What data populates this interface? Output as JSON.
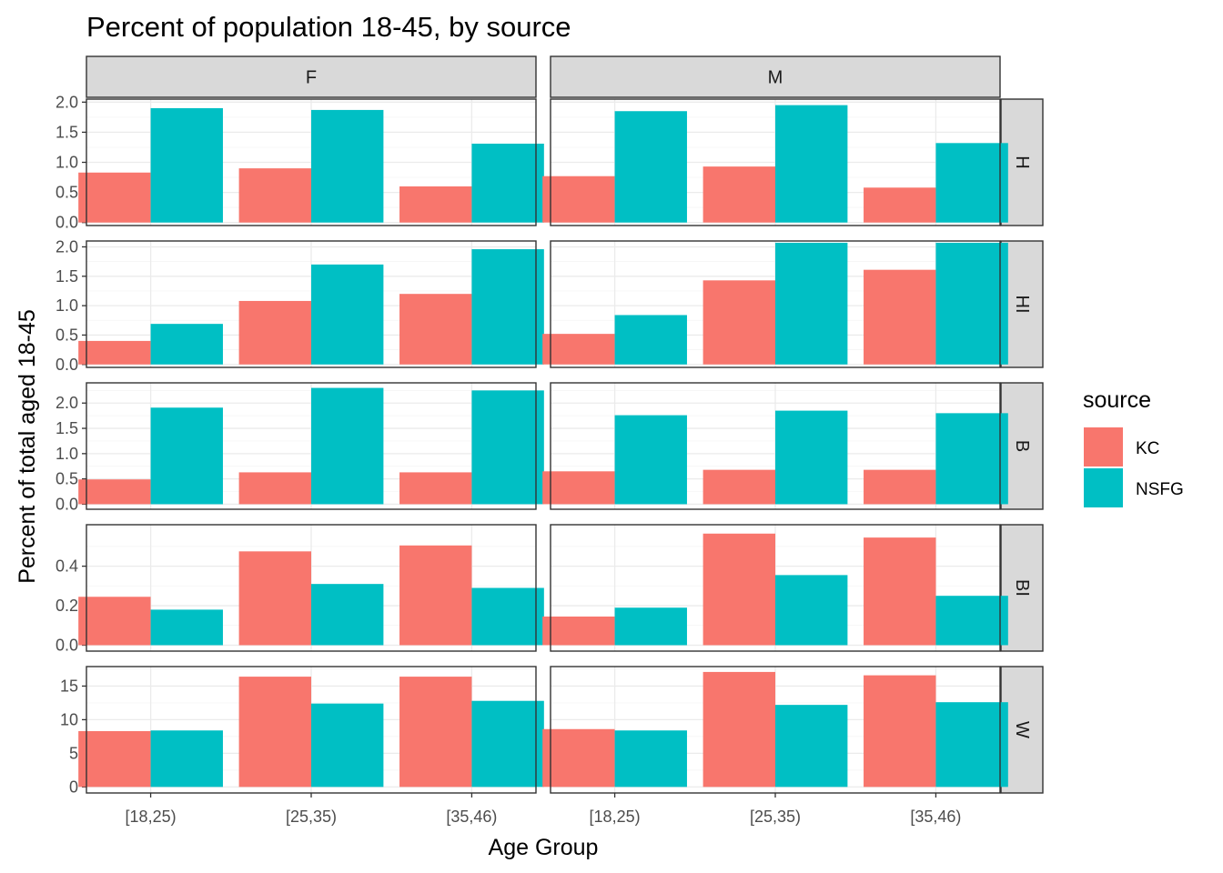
{
  "chart_data": {
    "type": "bar",
    "title": "Percent of population 18-45, by source",
    "xlabel": "Age Group",
    "ylabel": "Percent of total aged 18-45",
    "categories": [
      "[18,25)",
      "[25,35)",
      "[35,46)"
    ],
    "columns": [
      "F",
      "M"
    ],
    "legend": {
      "title": "source",
      "position": "right",
      "entries": [
        {
          "name": "KC",
          "color": "#F8766D"
        },
        {
          "name": "NSFG",
          "color": "#00BFC4"
        }
      ]
    },
    "grid": true,
    "rows": [
      {
        "label": "H",
        "ylim": [
          -0.05,
          2.05
        ],
        "ticks": [
          "0.0",
          "0.5",
          "1.0",
          "1.5",
          "2.0"
        ],
        "tick_values": [
          0,
          0.5,
          1.0,
          1.5,
          2.0
        ],
        "minor_step": 0.25,
        "panels": {
          "F": {
            "KC": [
              0.83,
              0.9,
              0.6
            ],
            "NSFG": [
              1.9,
              1.87,
              1.31
            ]
          },
          "M": {
            "KC": [
              0.77,
              0.93,
              0.58
            ],
            "NSFG": [
              1.85,
              1.95,
              1.32
            ]
          }
        }
      },
      {
        "label": "HI",
        "ylim": [
          -0.05,
          2.1
        ],
        "ticks": [
          "0.0",
          "0.5",
          "1.0",
          "1.5",
          "2.0"
        ],
        "tick_values": [
          0,
          0.5,
          1.0,
          1.5,
          2.0
        ],
        "minor_step": 0.25,
        "panels": {
          "F": {
            "KC": [
              0.4,
              1.08,
              1.2
            ],
            "NSFG": [
              0.69,
              1.7,
              1.96
            ]
          },
          "M": {
            "KC": [
              0.52,
              1.43,
              1.61
            ],
            "NSFG": [
              0.84,
              2.07,
              2.07
            ]
          }
        }
      },
      {
        "label": "B",
        "ylim": [
          -0.1,
          2.4
        ],
        "ticks": [
          "0.0",
          "0.5",
          "1.0",
          "1.5",
          "2.0"
        ],
        "tick_values": [
          0,
          0.5,
          1.0,
          1.5,
          2.0
        ],
        "minor_step": 0.25,
        "panels": {
          "F": {
            "KC": [
              0.49,
              0.63,
              0.63
            ],
            "NSFG": [
              1.91,
              2.3,
              2.25
            ]
          },
          "M": {
            "KC": [
              0.65,
              0.68,
              0.68
            ],
            "NSFG": [
              1.76,
              1.85,
              1.8
            ]
          }
        }
      },
      {
        "label": "BI",
        "ylim": [
          -0.03,
          0.61
        ],
        "ticks": [
          "0.0",
          "0.2",
          "0.4"
        ],
        "tick_values": [
          0,
          0.2,
          0.4
        ],
        "minor_step": 0.1,
        "panels": {
          "F": {
            "KC": [
              0.245,
              0.475,
              0.505
            ],
            "NSFG": [
              0.18,
              0.31,
              0.29
            ]
          },
          "M": {
            "KC": [
              0.145,
              0.565,
              0.545
            ],
            "NSFG": [
              0.19,
              0.355,
              0.25
            ]
          }
        }
      },
      {
        "label": "W",
        "ylim": [
          -0.9,
          17.9
        ],
        "ticks": [
          "0",
          "5",
          "10",
          "15"
        ],
        "tick_values": [
          0,
          5,
          10,
          15
        ],
        "minor_step": 2.5,
        "panels": {
          "F": {
            "KC": [
              8.3,
              16.4,
              16.4
            ],
            "NSFG": [
              8.4,
              12.4,
              12.8
            ]
          },
          "M": {
            "KC": [
              8.6,
              17.1,
              16.6
            ],
            "NSFG": [
              8.4,
              12.2,
              12.6
            ]
          }
        }
      }
    ]
  }
}
